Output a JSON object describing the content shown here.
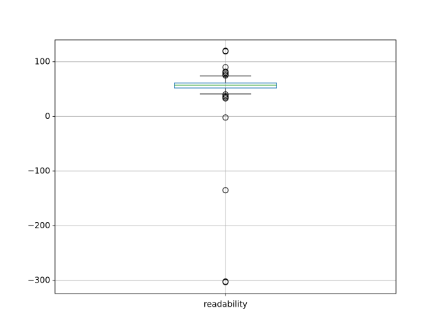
{
  "chart_data": {
    "type": "box",
    "categories": [
      "readability"
    ],
    "boxes": [
      {
        "whislo": 41,
        "q1": 52,
        "median": 57,
        "q3": 61,
        "whishi": 74,
        "fliers": [
          120,
          119,
          90,
          82,
          80,
          77,
          75,
          40,
          37,
          35,
          33,
          -2,
          -135,
          -302,
          -303
        ]
      }
    ],
    "box_color": "#1f77b4",
    "median_color": "#2ca02c",
    "whisker_color": "#000000",
    "ylim": [
      -324,
      140
    ],
    "yticks": [
      {
        "value": -300,
        "label": "−300"
      },
      {
        "value": -200,
        "label": "−200"
      },
      {
        "value": -100,
        "label": "−100"
      },
      0,
      100
    ],
    "grid": true
  }
}
